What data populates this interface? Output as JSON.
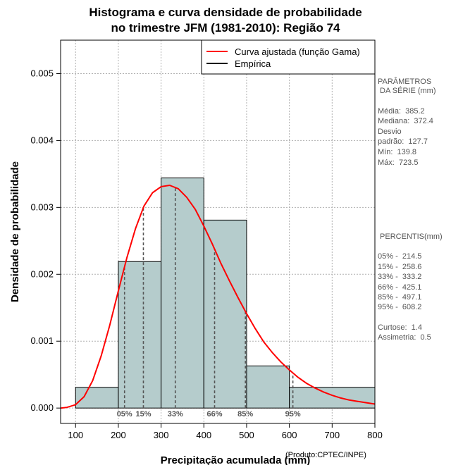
{
  "chart_data": {
    "type": "histogram",
    "title": [
      "Histograma e curva densidade de probabilidade",
      "no trimestre JFM (1981-2010): Região 74"
    ],
    "xlabel": "Precipitação acumulada (mm)",
    "ylabel": "Densidade de probabilidade",
    "credit": "(Produto:CPTEC/INPE)",
    "xlim": [
      65,
      800
    ],
    "ylim": [
      -0.00023,
      0.0055
    ],
    "xticks": [
      100,
      200,
      300,
      400,
      500,
      600,
      700,
      800
    ],
    "xtick_labels": [
      "100",
      "200",
      "300",
      "400",
      "500",
      "600",
      "700",
      "800"
    ],
    "yticks": [
      0.0,
      0.001,
      0.002,
      0.003,
      0.004,
      0.005
    ],
    "ytick_labels": [
      "0.000",
      "0.001",
      "0.002",
      "0.003",
      "0.004",
      "0.005"
    ],
    "bars": [
      {
        "x0": 100,
        "x1": 200,
        "density": 0.00031
      },
      {
        "x0": 200,
        "x1": 300,
        "density": 0.00219
      },
      {
        "x0": 300,
        "x1": 400,
        "density": 0.00344
      },
      {
        "x0": 400,
        "x1": 500,
        "density": 0.00281
      },
      {
        "x0": 500,
        "x1": 600,
        "density": 0.00063
      },
      {
        "x0": 600,
        "x1": 800,
        "density": 0.00031
      }
    ],
    "fitted_curve": {
      "name": "Curva ajustada (função Gama)",
      "color": "#ff0000",
      "points": [
        [
          65,
          0.0
        ],
        [
          80,
          1e-05
        ],
        [
          100,
          5e-05
        ],
        [
          120,
          0.00017
        ],
        [
          140,
          0.00041
        ],
        [
          160,
          0.00078
        ],
        [
          180,
          0.00124
        ],
        [
          200,
          0.00175
        ],
        [
          220,
          0.00225
        ],
        [
          240,
          0.00268
        ],
        [
          260,
          0.00302
        ],
        [
          280,
          0.00322
        ],
        [
          300,
          0.00331
        ],
        [
          320,
          0.00333
        ],
        [
          340,
          0.00328
        ],
        [
          360,
          0.00315
        ],
        [
          380,
          0.00297
        ],
        [
          400,
          0.00272
        ],
        [
          420,
          0.00245
        ],
        [
          440,
          0.00216
        ],
        [
          460,
          0.0019
        ],
        [
          480,
          0.00165
        ],
        [
          500,
          0.00141
        ],
        [
          520,
          0.00119
        ],
        [
          540,
          0.00099
        ],
        [
          560,
          0.00083
        ],
        [
          580,
          0.00069
        ],
        [
          600,
          0.00057
        ],
        [
          620,
          0.00046
        ],
        [
          640,
          0.00037
        ],
        [
          660,
          0.0003
        ],
        [
          680,
          0.00024
        ],
        [
          700,
          0.00019
        ],
        [
          720,
          0.00015
        ],
        [
          740,
          0.00012
        ],
        [
          760,
          0.0001
        ],
        [
          780,
          8e-05
        ],
        [
          800,
          6e-05
        ]
      ]
    },
    "empirical": {
      "name": "Empírica",
      "color": "#000000"
    },
    "percentile_lines": [
      {
        "label": "05%",
        "x": 214.5
      },
      {
        "label": "15%",
        "x": 258.6
      },
      {
        "label": "33%",
        "x": 333.2
      },
      {
        "label": "66%",
        "x": 425.1
      },
      {
        "label": "85%",
        "x": 497.1
      },
      {
        "label": "95%",
        "x": 608.2
      }
    ],
    "grid": true,
    "legend_position": "top-right",
    "bar_color": "#b5cccc"
  },
  "side_panel": {
    "params_title_1": "PARÂMETROS",
    "params_title_2": " DA SÉRIE (mm)",
    "stats": [
      "Média:  385.2",
      "Mediana:  372.4",
      "Desvio",
      "padrão:  127.7",
      "Mín:  139.8",
      "Máx:  723.5"
    ],
    "percentis_title": " PERCENTIS(mm)",
    "percentis": [
      "05% -  214.5",
      "15% -  258.6",
      "33% -  333.2",
      "66% -  425.1",
      "85% -  497.1",
      "95% -  608.2"
    ],
    "shape": [
      "Curtose:  1.4",
      "Assimetria:  0.5"
    ]
  }
}
